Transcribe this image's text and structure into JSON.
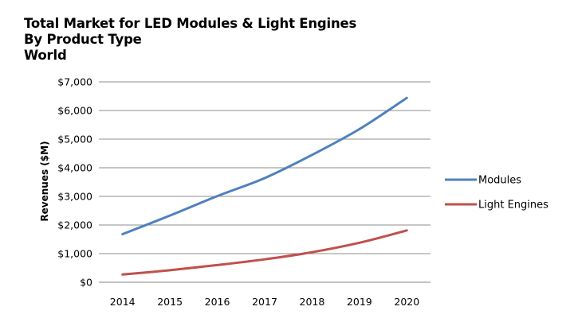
{
  "chart_data": {
    "type": "line",
    "title": [
      "Total Market for LED Modules & Light Engines",
      "By Product Type",
      "World"
    ],
    "xlabel": "",
    "ylabel": "Revenues ($M)",
    "categories": [
      "2014",
      "2015",
      "2016",
      "2017",
      "2018",
      "2019",
      "2020"
    ],
    "ylim": [
      0,
      7000
    ],
    "yticks": [
      0,
      1000,
      2000,
      3000,
      4000,
      5000,
      6000,
      7000
    ],
    "ytick_labels": [
      "$0",
      "$1,000",
      "$2,000",
      "$3,000",
      "$4,000",
      "$5,000",
      "$6,000",
      "$7,000"
    ],
    "grid": true,
    "legend_position": "right",
    "series": [
      {
        "name": "Modules",
        "color": "#4f81bd",
        "values": [
          1680,
          2330,
          3010,
          3640,
          4450,
          5350,
          6440
        ]
      },
      {
        "name": "Light Engines",
        "color": "#c0504d",
        "values": [
          270,
          420,
          600,
          800,
          1050,
          1380,
          1810
        ]
      }
    ]
  }
}
